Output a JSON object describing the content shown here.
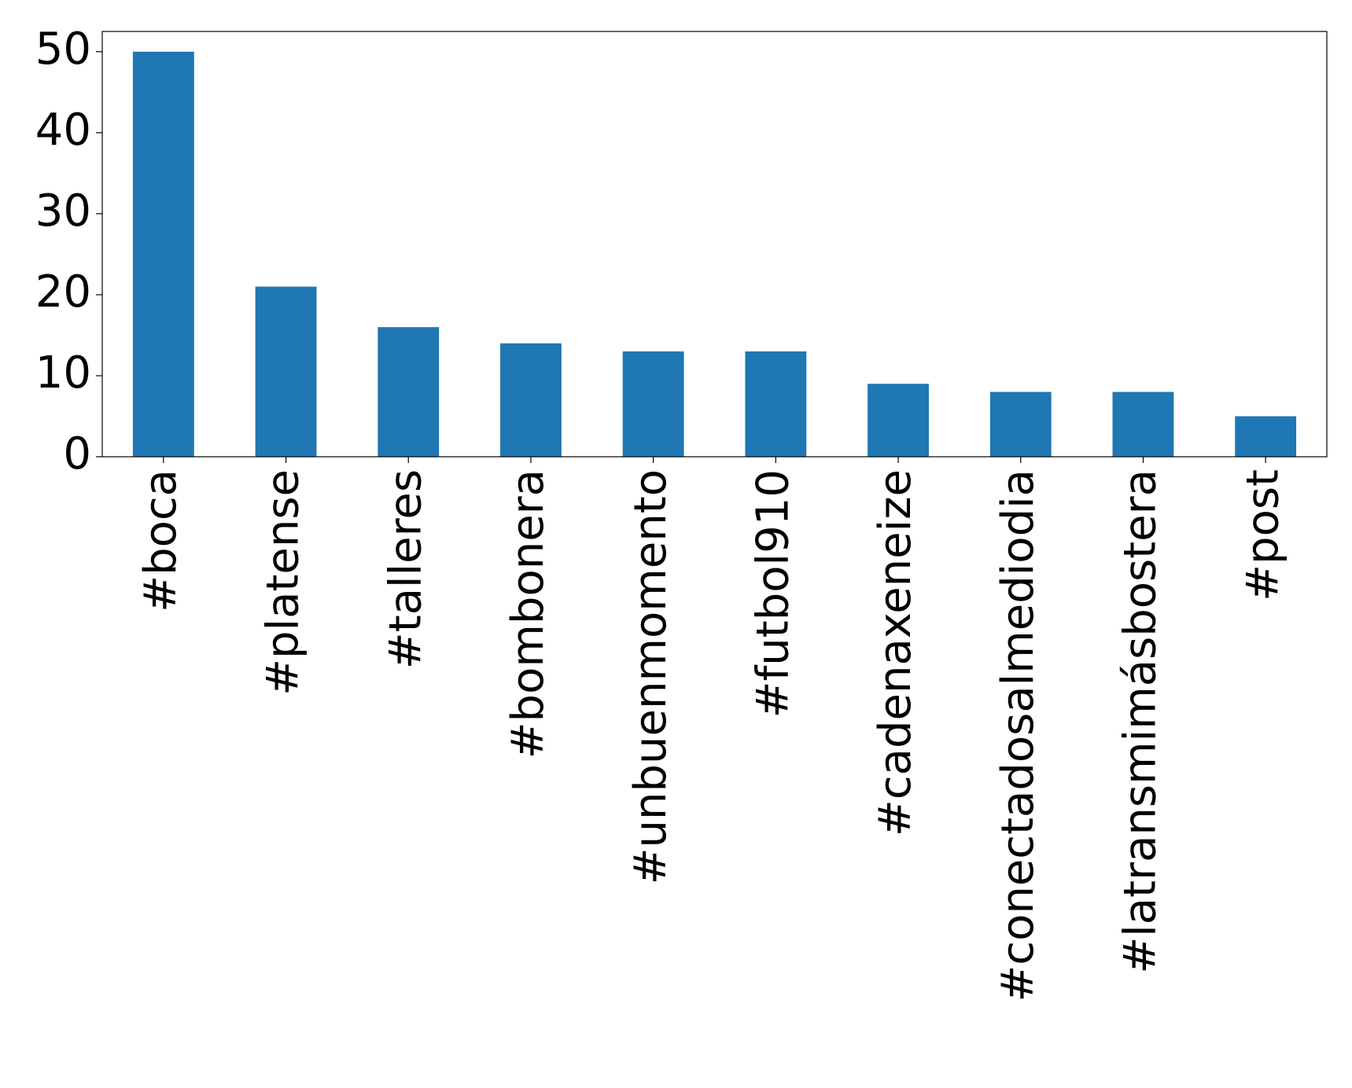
{
  "chart_data": {
    "type": "bar",
    "categories": [
      "#boca",
      "#platense",
      "#talleres",
      "#bombonera",
      "#unbuenmomento",
      "#futbol910",
      "#cadenaxeneize",
      "#conectadosalmediodia",
      "#latransmimásbostera",
      "#post"
    ],
    "values": [
      50,
      21,
      16,
      14,
      13,
      13,
      9,
      8,
      8,
      5
    ],
    "color": "#1f77b4",
    "ylim": [
      0,
      52.5
    ],
    "yticks": [
      0,
      10,
      20,
      30,
      40,
      50
    ],
    "grid": false
  }
}
